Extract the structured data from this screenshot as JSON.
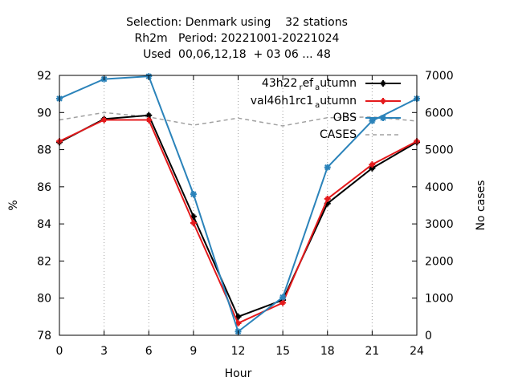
{
  "chart_data": {
    "type": "line",
    "title": [
      "Selection: Denmark using    32 stations",
      "Rh2m   Period: 20221001-20221024",
      "Used  00,06,12,18  + 03 06 ... 48"
    ],
    "xlabel": "Hour",
    "ylabel": "%",
    "y2label": "No cases",
    "xlim": [
      0,
      24
    ],
    "ylim": [
      78,
      92
    ],
    "y2lim": [
      0,
      7000
    ],
    "xticks": [
      0,
      3,
      6,
      9,
      12,
      15,
      18,
      21,
      24
    ],
    "yticks": [
      78,
      80,
      82,
      84,
      86,
      88,
      90,
      92
    ],
    "y2ticks": [
      0,
      1000,
      2000,
      3000,
      4000,
      5000,
      6000,
      7000
    ],
    "legend_position": "top-right",
    "x": [
      0,
      3,
      6,
      9,
      12,
      15,
      18,
      21,
      24
    ],
    "series": [
      {
        "name": "43h22_ref_autumn",
        "legend_main": "43h22",
        "legend_sub1": "r",
        "legend_mid": "ef",
        "legend_sub2": "a",
        "legend_end": "utumn",
        "color": "#000000",
        "marker": "cross",
        "axis": "left",
        "values": [
          88.4,
          89.65,
          89.85,
          84.4,
          79.0,
          79.9,
          85.1,
          87.0,
          88.4
        ]
      },
      {
        "name": "val46h1rc1_autumn",
        "legend_main": "val46h1rc1",
        "legend_sub2": "a",
        "legend_end": "utumn",
        "color": "#e41a1c",
        "marker": "cross",
        "axis": "left",
        "values": [
          88.45,
          89.6,
          89.6,
          84.05,
          78.65,
          79.75,
          85.35,
          87.2,
          88.45
        ]
      },
      {
        "name": "OBS",
        "color": "#2b83ba",
        "marker": "star",
        "axis": "left",
        "values": [
          90.75,
          91.8,
          91.95,
          85.6,
          78.2,
          80.05,
          87.05,
          89.55,
          90.75
        ]
      },
      {
        "name": "CASES",
        "color": "#a0a0a0",
        "dashed": true,
        "axis": "right",
        "values": [
          5800,
          6000,
          5880,
          5660,
          5850,
          5640,
          5860,
          5880,
          5770
        ]
      }
    ]
  }
}
